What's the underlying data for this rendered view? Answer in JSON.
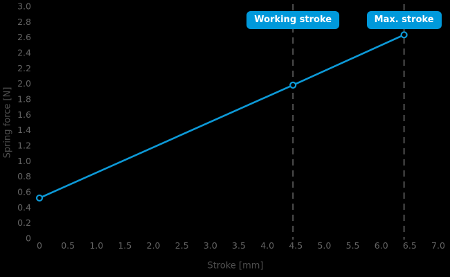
{
  "chart_data": {
    "type": "line",
    "title": "",
    "xlabel": "Stroke [mm]",
    "ylabel": "Spring force [N]",
    "xlim": [
      0,
      7.0
    ],
    "ylim": [
      0,
      3.0
    ],
    "grid": false,
    "legend": "none",
    "background_color": "#000000",
    "tick_label_color": "#646464",
    "axis_title_color": "#4f4f4f",
    "guide_line_color": "#515151",
    "badge": {
      "bg": "#0099db",
      "text": "#ffffff"
    },
    "x_tick_values": [
      0,
      0.5,
      1.0,
      1.5,
      2.0,
      2.5,
      3.0,
      3.5,
      4.0,
      4.5,
      5.0,
      5.5,
      6.0,
      6.5,
      7.0
    ],
    "x_tick_labels": [
      "0",
      "0.5",
      "1.0",
      "1.5",
      "2.0",
      "2.5",
      "3.0",
      "3.5",
      "4.0",
      "4.5",
      "5.0",
      "5.5",
      "6.0",
      "6.5",
      "7.0"
    ],
    "y_tick_values": [
      0,
      0.2,
      0.4,
      0.6,
      0.8,
      1.0,
      1.2,
      1.4,
      1.6,
      1.8,
      2.0,
      2.2,
      2.4,
      2.6,
      2.8,
      3.0
    ],
    "y_tick_labels": [
      "0",
      "0.2",
      "0.4",
      "0.6",
      "0.8",
      "1.0",
      "1.2",
      "1.4",
      "1.6",
      "1.8",
      "2.0",
      "2.2",
      "2.4",
      "2.6",
      "2.8",
      "3.0"
    ],
    "series": [
      {
        "name": "spring-force-line",
        "color": "#0d9ad8",
        "marker_fill": "#000000",
        "x": [
          0,
          4.45,
          6.4
        ],
        "y": [
          0.52,
          1.98,
          2.63
        ]
      }
    ],
    "annotations": [
      {
        "label": "Working stroke",
        "x": 4.45
      },
      {
        "label": "Max. stroke",
        "x": 6.4
      }
    ]
  }
}
